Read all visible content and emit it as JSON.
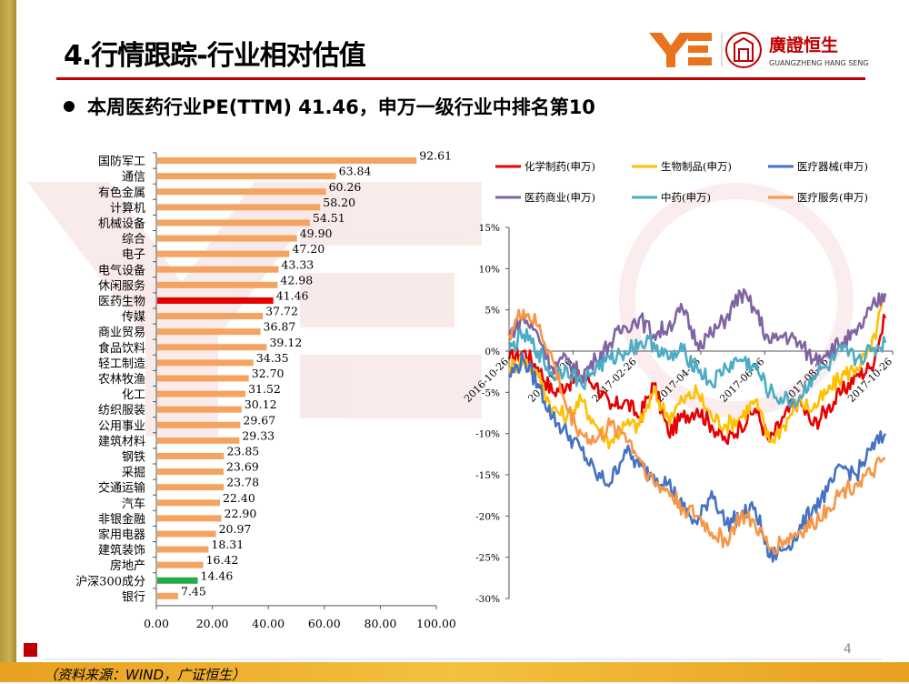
{
  "header": {
    "title": "4.行情跟踪-行业相对估值",
    "subtitle": "本周医药行业PE(TTM) 41.46，申万一级行业中排名第10",
    "logo_cn": "廣證恒生",
    "logo_en": "GUANGZHENG HANG SENG"
  },
  "colors": {
    "bar_default": "#f4a460",
    "bar_highlight": "#e60000",
    "bar_index": "#22aa44"
  },
  "chart_data": [
    {
      "type": "bar",
      "orientation": "horizontal",
      "categories": [
        "国防军工",
        "通信",
        "有色金属",
        "计算机",
        "机械设备",
        "综合",
        "电子",
        "电气设备",
        "休闲服务",
        "医药生物",
        "传媒",
        "商业贸易",
        "食品饮料",
        "轻工制造",
        "农林牧渔",
        "化工",
        "纺织服装",
        "公用事业",
        "建筑材料",
        "钢铁",
        "采掘",
        "交通运输",
        "汽车",
        "非银金融",
        "家用电器",
        "建筑装饰",
        "房地产",
        "沪深300成分",
        "银行"
      ],
      "values": [
        92.61,
        63.84,
        60.26,
        58.2,
        54.51,
        49.9,
        47.2,
        43.33,
        42.98,
        41.46,
        37.72,
        36.87,
        39.12,
        34.35,
        32.7,
        31.52,
        30.12,
        29.67,
        29.33,
        23.85,
        23.69,
        23.78,
        22.4,
        22.9,
        20.97,
        18.31,
        16.42,
        14.46,
        7.45
      ],
      "value_labels": [
        "92.61",
        "63.84",
        "60.26",
        "58.20",
        "54.51",
        "49.90",
        "47.20",
        "43.33",
        "42.98",
        "41.46",
        "37.72",
        "36.87",
        "39.12",
        "34.35",
        "32.70",
        "31.52",
        "30.12",
        "29.67",
        "29.33",
        "23.85",
        "23.69",
        "23.78",
        "22.40",
        "22.90",
        "20.97",
        "18.31",
        "16.42",
        "14.46",
        "7.45"
      ],
      "highlight": {
        "医药生物": "bar_highlight",
        "沪深300成分": "bar_index"
      },
      "xlim": [
        0,
        100
      ],
      "xticks": [
        "0.00",
        "20.00",
        "40.00",
        "60.00",
        "80.00",
        "100.00"
      ]
    },
    {
      "type": "line",
      "x_ticks": [
        "2016-10-26",
        "2016-12-26",
        "2017-02-26",
        "2017-04-26",
        "2017-06-26",
        "2017-08-26",
        "2017-10-26"
      ],
      "y_ticks": [
        "15%",
        "10%",
        "5%",
        "0%",
        "-5%",
        "-10%",
        "-15%",
        "-20%",
        "-25%",
        "-30%"
      ],
      "ylim": [
        -30,
        15
      ],
      "series": [
        {
          "name": "化学制药(申万)",
          "color": "#e60000",
          "values": [
            -1,
            0,
            -2,
            -5,
            -4,
            -3,
            -4,
            -7,
            -6,
            -8,
            -4,
            -10,
            -8,
            -7,
            -9,
            -11,
            -9,
            -7,
            -11,
            -8,
            -6,
            -9,
            -7,
            -5,
            -3,
            -2,
            4
          ]
        },
        {
          "name": "生物制品(申万)",
          "color": "#ffc000",
          "values": [
            -2,
            -1,
            -3,
            -7,
            -8,
            -6,
            -9,
            -11,
            -9,
            -9,
            -5,
            -8,
            -6,
            -5,
            -8,
            -9,
            -8,
            -6,
            -11,
            -9,
            -6,
            -7,
            -5,
            -3,
            -2,
            0,
            7
          ]
        },
        {
          "name": "医疗器械(申万)",
          "color": "#4472c4",
          "values": [
            -3,
            -1,
            -4,
            -8,
            -10,
            -12,
            -15,
            -16,
            -12,
            -14,
            -15,
            -16,
            -19,
            -21,
            -17,
            -21,
            -20,
            -19,
            -25,
            -24,
            -22,
            -19,
            -17,
            -14,
            -15,
            -12,
            -10
          ]
        },
        {
          "name": "医药商业(申万)",
          "color": "#8064a2",
          "values": [
            2,
            4,
            2,
            -2,
            -1,
            -3,
            -1,
            1,
            3,
            4,
            2,
            3,
            5,
            1,
            2,
            4,
            7,
            5,
            1,
            2,
            1,
            -1,
            0,
            1,
            2,
            5,
            7
          ]
        },
        {
          "name": "中药(申万)",
          "color": "#4bacc6",
          "values": [
            0,
            2,
            0,
            -3,
            -2,
            -4,
            -2,
            -1,
            0,
            1,
            1,
            -1,
            0,
            -2,
            -4,
            -2,
            -1,
            -2,
            -5,
            -6,
            -6,
            -3,
            -2,
            0,
            -1,
            0,
            1
          ]
        },
        {
          "name": "医疗服务(申万)",
          "color": "#f79646",
          "values": [
            2,
            5,
            3,
            -1,
            -7,
            -10,
            -11,
            -9,
            -10,
            -13,
            -16,
            -17,
            -19,
            -20,
            -22,
            -23,
            -20,
            -21,
            -24,
            -23,
            -22,
            -21,
            -19,
            -17,
            -16,
            -15,
            -13
          ]
        }
      ]
    }
  ],
  "footer": {
    "source": "（资料来源：WIND，广证恒生）",
    "page_number": "4"
  }
}
